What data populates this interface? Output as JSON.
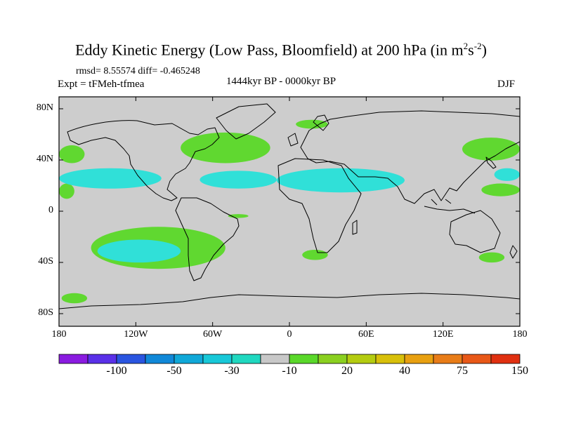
{
  "title": {
    "main": "Eddy Kinetic Energy (Low Pass, Bloomfield) at 200 hPa (in m",
    "sup1": "2",
    "mid": "s",
    "sup2": "-2",
    "close": ")"
  },
  "stats": "rmsd= 8.55574 diff= -0.465248",
  "experiment": "Expt = tFMeh-tfmea",
  "period": "1444kyr BP - 0000kyr BP",
  "season": "DJF",
  "lat_ticks": [
    {
      "value": 80,
      "label": "80N"
    },
    {
      "value": 40,
      "label": "40N"
    },
    {
      "value": 0,
      "label": "0"
    },
    {
      "value": -40,
      "label": "40S"
    },
    {
      "value": -80,
      "label": "80S"
    }
  ],
  "lon_ticks": [
    {
      "value": -180,
      "label": "180"
    },
    {
      "value": -120,
      "label": "120W"
    },
    {
      "value": -60,
      "label": "60W"
    },
    {
      "value": 0,
      "label": "0"
    },
    {
      "value": 60,
      "label": "60E"
    },
    {
      "value": 120,
      "label": "120E"
    },
    {
      "value": 180,
      "label": "180"
    }
  ],
  "colorbar": {
    "colors": [
      "#8a1be0",
      "#5a30e8",
      "#2a55e0",
      "#1088d8",
      "#10a8d8",
      "#18c8d8",
      "#20d8c0",
      "#c8c8c8",
      "#5ad82a",
      "#8ad020",
      "#b4cc10",
      "#d8c00a",
      "#e8a010",
      "#e87c18",
      "#e85818",
      "#e03010"
    ],
    "labels": [
      "-100",
      "-50",
      "-30",
      "-10",
      "20",
      "40",
      "75",
      "150"
    ]
  },
  "map_colors": {
    "background": "#cdcdcd",
    "green": "#60d830",
    "cyan": "#30e0d8",
    "coast": "#000000"
  },
  "chart_data": {
    "type": "heatmap",
    "projection": "cylindrical-equidistant",
    "variable": "Eddy Kinetic Energy difference",
    "units": "m2 s-2",
    "level": "200 hPa",
    "lon_range": [
      -180,
      180
    ],
    "lat_range": [
      -90,
      90
    ],
    "anomaly_regions": [
      {
        "name": "north-atlantic-green",
        "sign": "positive",
        "category": "10 to 20",
        "lon": [
          -85,
          -15
        ],
        "lat": [
          38,
          62
        ]
      },
      {
        "name": "north-atlantic-green-west",
        "sign": "positive",
        "category": "10 to 20",
        "lon": [
          -75,
          -60
        ],
        "lat": [
          52,
          60
        ]
      },
      {
        "name": "north-pacific-east-green",
        "sign": "positive",
        "category": "10 to 20",
        "lon": [
          -180,
          -160
        ],
        "lat": [
          38,
          52
        ]
      },
      {
        "name": "north-pacific-west-green",
        "sign": "positive",
        "category": "10 to 20",
        "lon": [
          135,
          180
        ],
        "lat": [
          40,
          58
        ]
      },
      {
        "name": "scandinavia-green",
        "sign": "positive",
        "category": "10 to 20",
        "lon": [
          5,
          30
        ],
        "lat": [
          65,
          72
        ]
      },
      {
        "name": "subtropical-pacific-east-green",
        "sign": "positive",
        "category": "10 to 20",
        "lon": [
          -180,
          -168
        ],
        "lat": [
          10,
          22
        ]
      },
      {
        "name": "subtropical-pacific-west-green",
        "sign": "positive",
        "category": "10 to 20",
        "lon": [
          150,
          180
        ],
        "lat": [
          12,
          22
        ]
      },
      {
        "name": "southern-pacific-green",
        "sign": "positive",
        "category": "10 to 20",
        "lon": [
          -155,
          -50
        ],
        "lat": [
          -45,
          -12
        ]
      },
      {
        "name": "south-atlantic-green",
        "sign": "positive",
        "category": "10 to 20",
        "lon": [
          -48,
          -32
        ],
        "lat": [
          -5,
          -2
        ]
      },
      {
        "name": "south-africa-green",
        "sign": "positive",
        "category": "10 to 20",
        "lon": [
          10,
          30
        ],
        "lat": [
          -38,
          -30
        ]
      },
      {
        "name": "australia-east-green",
        "sign": "positive",
        "category": "10 to 20",
        "lon": [
          148,
          168
        ],
        "lat": [
          -40,
          -32
        ]
      },
      {
        "name": "antarctic-green",
        "sign": "positive",
        "category": "10 to 20",
        "lon": [
          -178,
          -158
        ],
        "lat": [
          -72,
          -64
        ]
      },
      {
        "name": "subtropical-pacific-cyan",
        "sign": "negative",
        "category": "-10 to -1",
        "lon": [
          -180,
          -100
        ],
        "lat": [
          18,
          34
        ]
      },
      {
        "name": "subtropical-atlantic-cyan",
        "sign": "negative",
        "category": "-10 to -1",
        "lon": [
          -70,
          -10
        ],
        "lat": [
          18,
          32
        ]
      },
      {
        "name": "north-africa-cyan",
        "sign": "negative",
        "category": "-10 to -1",
        "lon": [
          -10,
          90
        ],
        "lat": [
          15,
          34
        ]
      },
      {
        "name": "west-pacific-cyan",
        "sign": "negative",
        "category": "-10 to -1",
        "lon": [
          160,
          180
        ],
        "lat": [
          24,
          34
        ]
      },
      {
        "name": "south-pacific-cyan",
        "sign": "negative",
        "category": "-10 to -1",
        "lon": [
          -150,
          -85
        ],
        "lat": [
          -40,
          -22
        ]
      }
    ]
  }
}
